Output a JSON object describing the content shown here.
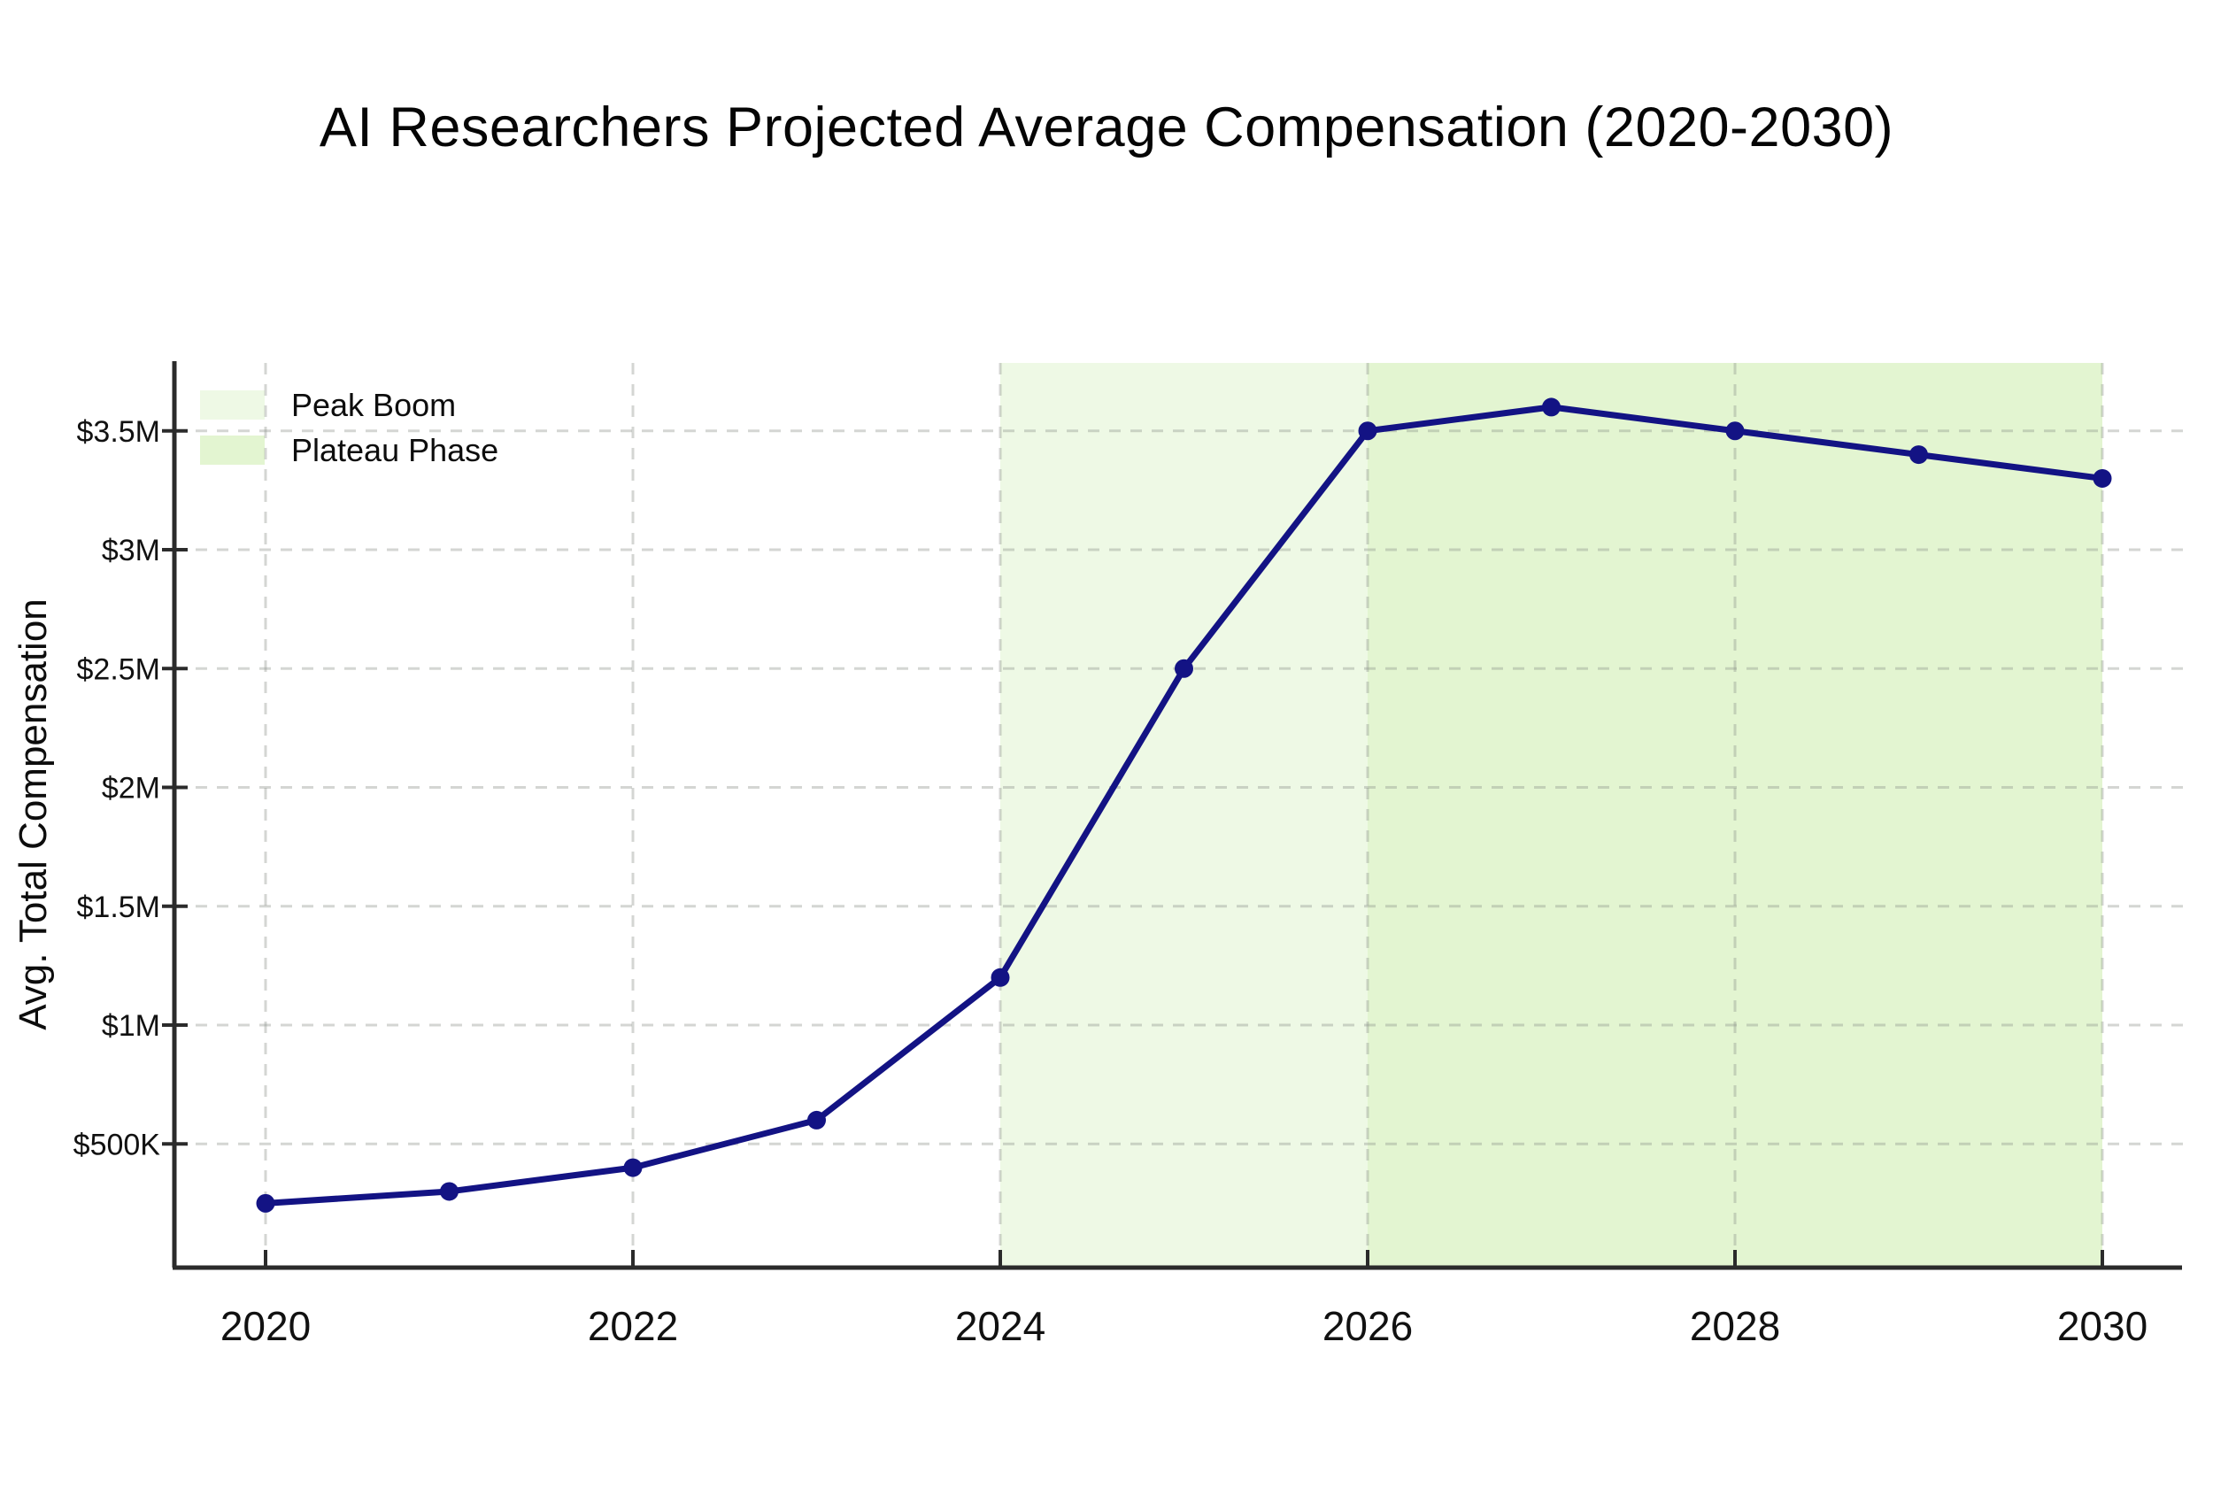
{
  "title": "AI Researchers Projected Average Compensation (2020-2030)",
  "chart_data": {
    "type": "line",
    "title": "AI Researchers Projected Average Compensation (2020-2030)",
    "xlabel": "",
    "ylabel": "Avg. Total Compensation",
    "x": [
      2020,
      2021,
      2022,
      2023,
      2024,
      2025,
      2026,
      2027,
      2028,
      2029,
      2030
    ],
    "series": [
      {
        "name": "Avg. Total Compensation",
        "values": [
          250000,
          300000,
          400000,
          600000,
          1200000,
          2500000,
          3500000,
          3600000,
          3500000,
          3400000,
          3300000
        ]
      }
    ],
    "x_tick_values": [
      2020,
      2022,
      2024,
      2026,
      2028,
      2030
    ],
    "x_tick_labels": [
      "2020",
      "2022",
      "2024",
      "2026",
      "2028",
      "2030"
    ],
    "y_ticks": [
      {
        "value": 500000,
        "label": "$500K"
      },
      {
        "value": 1000000,
        "label": "$1M"
      },
      {
        "value": 1500000,
        "label": "$1.5M"
      },
      {
        "value": 2000000,
        "label": "$2M"
      },
      {
        "value": 2500000,
        "label": "$2.5M"
      },
      {
        "value": 3000000,
        "label": "$3M"
      },
      {
        "value": 3500000,
        "label": "$3.5M"
      }
    ],
    "ylim": [
      0,
      3800000
    ],
    "xlim": [
      2019.5,
      2030.5
    ],
    "grid": "dashed",
    "legend_position": "top-left",
    "line_color": "#131384",
    "marker_color": "#131384",
    "axis_color": "#2b2b2b",
    "gridline_color": "#8f948c",
    "regions": [
      {
        "label": "Peak Boom",
        "x_from": 2024,
        "x_to": 2026,
        "color": "#eef9e5"
      },
      {
        "label": "Plateau Phase",
        "x_from": 2026,
        "x_to": 2030,
        "color": "#e3f5d1"
      }
    ]
  }
}
